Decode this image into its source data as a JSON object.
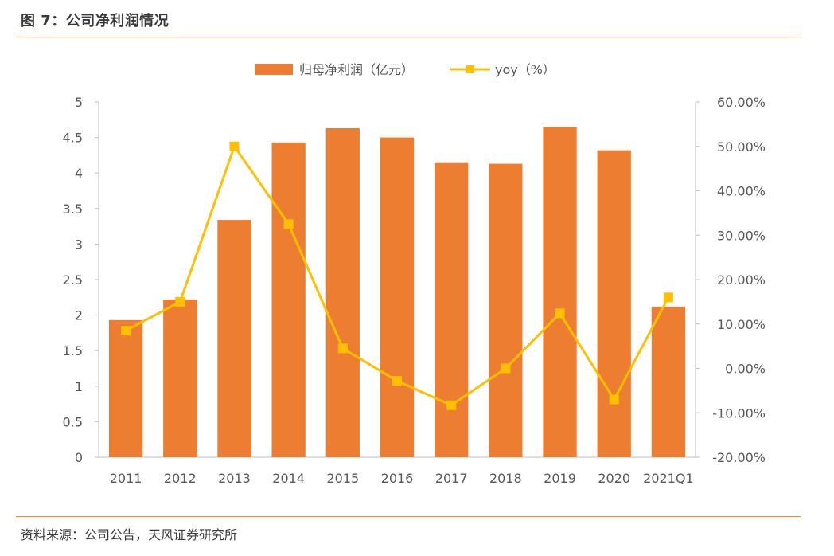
{
  "figure": {
    "title": "图 7：公司净利润情况",
    "source": "资料来源：公司公告，天风证券研究所"
  },
  "colors": {
    "bar": "#ed7d31",
    "line": "#ffc000",
    "rule": "#e88a2f",
    "axis": "#bfbfbf",
    "text": "#595959"
  },
  "chart_data": {
    "type": "bar",
    "title": "",
    "categories": [
      "2011",
      "2012",
      "2013",
      "2014",
      "2015",
      "2016",
      "2017",
      "2018",
      "2019",
      "2020",
      "2021Q1"
    ],
    "series": [
      {
        "name": "归母净利润（亿元）",
        "type": "bar",
        "axis": "left",
        "values": [
          1.93,
          2.22,
          3.34,
          4.43,
          4.63,
          4.5,
          4.14,
          4.13,
          4.65,
          4.32,
          2.12
        ]
      },
      {
        "name": "yoy（%）",
        "type": "line",
        "axis": "right",
        "values": [
          8.5,
          15.0,
          50.0,
          32.5,
          4.5,
          -2.8,
          -8.3,
          0.0,
          12.4,
          -7.0,
          16.0
        ]
      }
    ],
    "y_left": {
      "min": 0,
      "max": 5,
      "ticks": [
        "0",
        "0.5",
        "1",
        "1.5",
        "2",
        "2.5",
        "3",
        "3.5",
        "4",
        "4.5",
        "5"
      ]
    },
    "y_right": {
      "min": -20,
      "max": 60,
      "ticks": [
        "-20.00%",
        "-10.00%",
        "0.00%",
        "10.00%",
        "20.00%",
        "30.00%",
        "40.00%",
        "50.00%",
        "60.00%"
      ]
    },
    "legend_position": "top-center",
    "grid": false
  }
}
